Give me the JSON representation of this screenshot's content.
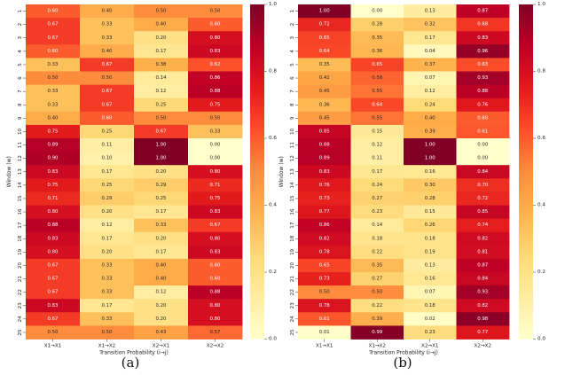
{
  "chart_data": [
    {
      "type": "heatmap",
      "panel_label": "(a)",
      "xlabel": "Transition Probability (i→j)",
      "ylabel": "Window (w)",
      "columns": [
        "X1→X1",
        "X1→X2",
        "X2→X1",
        "X2→X2"
      ],
      "rows": [
        "1",
        "2",
        "3",
        "4",
        "5",
        "6",
        "7",
        "8",
        "9",
        "10",
        "11",
        "12",
        "13",
        "14",
        "15",
        "16",
        "17",
        "18",
        "19",
        "20",
        "21",
        "22",
        "23",
        "24",
        "25"
      ],
      "values": [
        [
          0.6,
          0.4,
          0.5,
          0.5
        ],
        [
          0.67,
          0.33,
          0.4,
          0.6
        ],
        [
          0.67,
          0.33,
          0.2,
          0.8
        ],
        [
          0.6,
          0.4,
          0.17,
          0.83
        ],
        [
          0.33,
          0.67,
          0.38,
          0.62
        ],
        [
          0.5,
          0.5,
          0.14,
          0.86
        ],
        [
          0.33,
          0.67,
          0.12,
          0.88
        ],
        [
          0.33,
          0.67,
          0.25,
          0.75
        ],
        [
          0.4,
          0.6,
          0.5,
          0.5
        ],
        [
          0.75,
          0.25,
          0.67,
          0.33
        ],
        [
          0.89,
          0.11,
          1.0,
          0.0
        ],
        [
          0.9,
          0.1,
          1.0,
          0.0
        ],
        [
          0.83,
          0.17,
          0.2,
          0.8
        ],
        [
          0.75,
          0.25,
          0.29,
          0.71
        ],
        [
          0.71,
          0.29,
          0.25,
          0.75
        ],
        [
          0.8,
          0.2,
          0.17,
          0.83
        ],
        [
          0.88,
          0.12,
          0.33,
          0.67
        ],
        [
          0.83,
          0.17,
          0.2,
          0.8
        ],
        [
          0.8,
          0.2,
          0.17,
          0.83
        ],
        [
          0.67,
          0.33,
          0.4,
          0.6
        ],
        [
          0.67,
          0.33,
          0.4,
          0.6
        ],
        [
          0.67,
          0.33,
          0.12,
          0.88
        ],
        [
          0.83,
          0.17,
          0.2,
          0.8
        ],
        [
          0.67,
          0.33,
          0.2,
          0.8
        ],
        [
          0.5,
          0.5,
          0.43,
          0.57
        ]
      ],
      "vmin": 0.0,
      "vmax": 1.0,
      "colormap": "YlOrRd",
      "colorbar_ticks": [
        "0.0",
        "0.2",
        "0.4",
        "0.6",
        "0.8",
        "1.0"
      ]
    },
    {
      "type": "heatmap",
      "panel_label": "(b)",
      "xlabel": "Transition Probability (i→j)",
      "ylabel": "Window (w)",
      "columns": [
        "X1→X1",
        "X1→X2",
        "X2→X1",
        "X2→X2"
      ],
      "rows": [
        "1",
        "2",
        "3",
        "4",
        "5",
        "6",
        "7",
        "8",
        "9",
        "10",
        "11",
        "12",
        "13",
        "14",
        "15",
        "16",
        "17",
        "18",
        "19",
        "20",
        "21",
        "22",
        "23",
        "24",
        "25"
      ],
      "values": [
        [
          1.0,
          0.0,
          0.13,
          0.87
        ],
        [
          0.72,
          0.28,
          0.32,
          0.68
        ],
        [
          0.65,
          0.35,
          0.17,
          0.83
        ],
        [
          0.64,
          0.36,
          0.04,
          0.96
        ],
        [
          0.35,
          0.65,
          0.37,
          0.63
        ],
        [
          0.42,
          0.58,
          0.07,
          0.93
        ],
        [
          0.45,
          0.55,
          0.12,
          0.88
        ],
        [
          0.36,
          0.64,
          0.24,
          0.76
        ],
        [
          0.45,
          0.55,
          0.4,
          0.6
        ],
        [
          0.85,
          0.15,
          0.39,
          0.61
        ],
        [
          0.88,
          0.12,
          1.0,
          0.0
        ],
        [
          0.89,
          0.11,
          1.0,
          0.0
        ],
        [
          0.83,
          0.17,
          0.16,
          0.84
        ],
        [
          0.76,
          0.24,
          0.3,
          0.7
        ],
        [
          0.73,
          0.27,
          0.28,
          0.72
        ],
        [
          0.77,
          0.23,
          0.15,
          0.85
        ],
        [
          0.86,
          0.14,
          0.26,
          0.74
        ],
        [
          0.82,
          0.18,
          0.18,
          0.82
        ],
        [
          0.78,
          0.22,
          0.19,
          0.81
        ],
        [
          0.65,
          0.35,
          0.13,
          0.87
        ],
        [
          0.73,
          0.27,
          0.16,
          0.84
        ],
        [
          0.5,
          0.5,
          0.07,
          0.93
        ],
        [
          0.78,
          0.22,
          0.18,
          0.82
        ],
        [
          0.61,
          0.39,
          0.02,
          0.98
        ],
        [
          0.01,
          0.99,
          0.23,
          0.77
        ]
      ],
      "vmin": 0.0,
      "vmax": 1.0,
      "colormap": "YlOrRd",
      "colorbar_ticks": [
        "0.0",
        "0.2",
        "0.4",
        "0.6",
        "0.8",
        "1.0"
      ]
    }
  ]
}
